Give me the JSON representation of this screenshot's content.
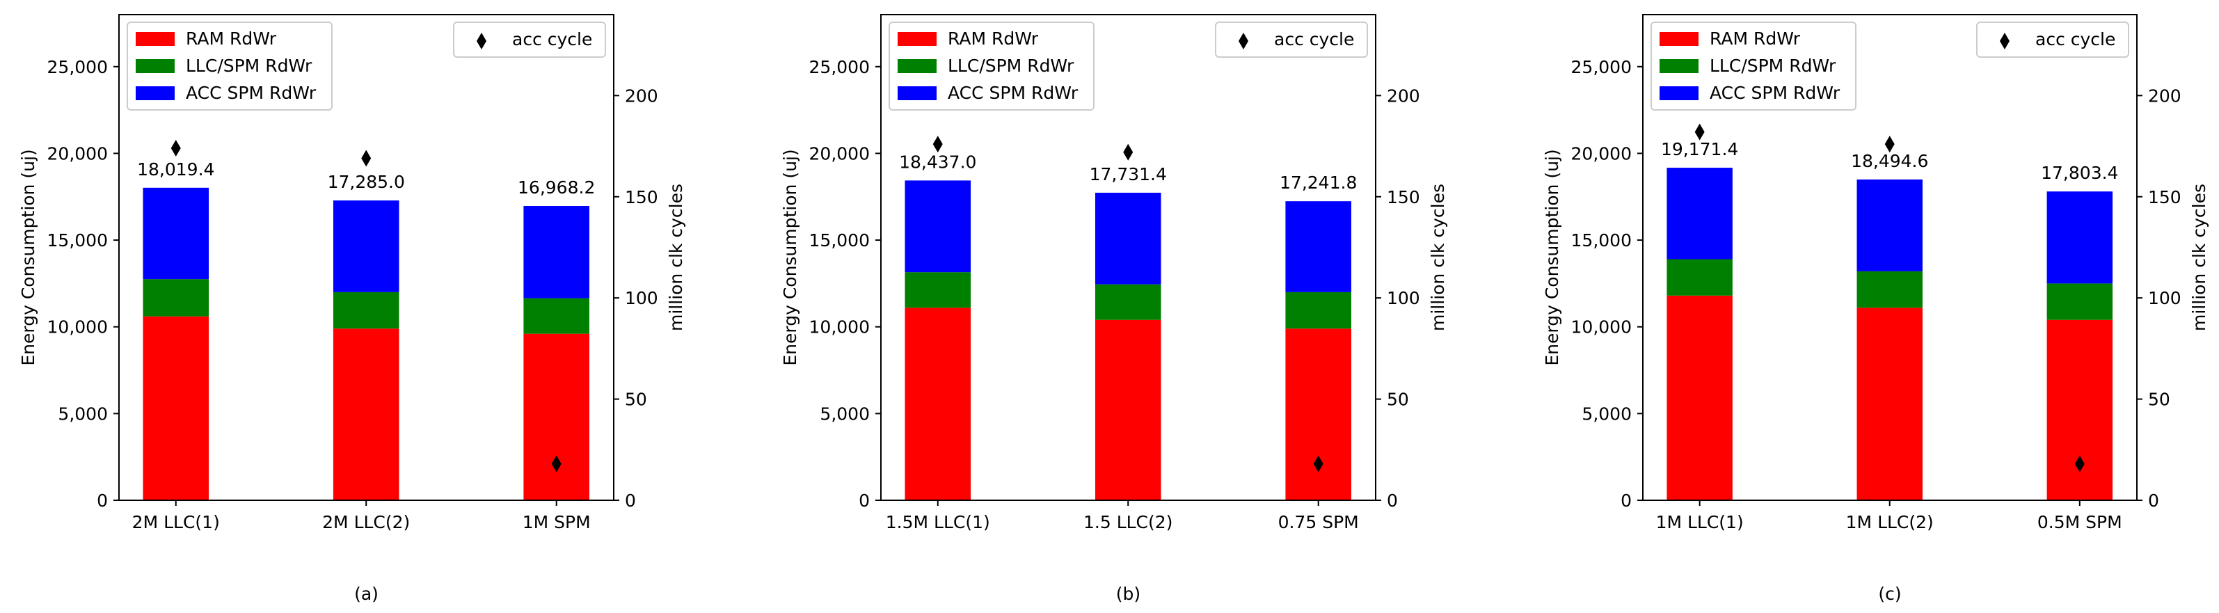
{
  "legend": {
    "ram": "RAM RdWr",
    "llc": "LLC/SPM RdWr",
    "acc": "ACC SPM RdWr",
    "cycle": "acc cycle"
  },
  "colors": {
    "ram": "#ff0000",
    "llc": "#008000",
    "acc": "#0000ff",
    "marker": "#000000"
  },
  "chart_data": [
    {
      "type": "bar",
      "stacked": true,
      "caption": "(a)",
      "categories": [
        "2M LLC(1)",
        "2M LLC(2)",
        "1M SPM"
      ],
      "series": [
        {
          "name": "RAM RdWr",
          "values": [
            10600,
            9900,
            9600
          ]
        },
        {
          "name": "LLC/SPM RdWr",
          "values": [
            2150,
            2100,
            2050
          ]
        },
        {
          "name": "ACC SPM RdWr",
          "values": [
            5269.4,
            5285.0,
            5318.2
          ]
        }
      ],
      "totals": [
        18019.4,
        17285.0,
        16968.2
      ],
      "total_labels": [
        "18,019.4",
        "17,285.0",
        "16,968.2"
      ],
      "secondary_series": {
        "name": "acc cycle",
        "type": "scatter",
        "values": [
          174,
          169,
          18
        ]
      },
      "ylabel": "Energy Consumption (uj)",
      "y2label": "million clk cycles",
      "ylim": [
        0,
        28000
      ],
      "y2lim": [
        0,
        240
      ],
      "yticks": [
        0,
        5000,
        10000,
        15000,
        20000,
        25000
      ],
      "ytick_labels": [
        "0",
        "5,000",
        "10,000",
        "15,000",
        "20,000",
        "25,000"
      ],
      "y2ticks": [
        0,
        50,
        100,
        150,
        200
      ],
      "y2tick_labels": [
        "0",
        "50",
        "100",
        "150",
        "200"
      ],
      "legend_position": "upper-left",
      "legend2_position": "upper-right"
    },
    {
      "type": "bar",
      "stacked": true,
      "caption": "(b)",
      "categories": [
        "1.5M LLC(1)",
        "1.5 LLC(2)",
        "0.75 SPM"
      ],
      "series": [
        {
          "name": "RAM RdWr",
          "values": [
            11100,
            10400,
            9900
          ]
        },
        {
          "name": "LLC/SPM RdWr",
          "values": [
            2050,
            2050,
            2100
          ]
        },
        {
          "name": "ACC SPM RdWr",
          "values": [
            5287.0,
            5281.4,
            5241.8
          ]
        }
      ],
      "totals": [
        18437.0,
        17731.4,
        17241.8
      ],
      "total_labels": [
        "18,437.0",
        "17,731.4",
        "17,241.8"
      ],
      "secondary_series": {
        "name": "acc cycle",
        "type": "scatter",
        "values": [
          176,
          172,
          18
        ]
      },
      "ylabel": "Energy Consumption (uj)",
      "y2label": "million clk cycles",
      "ylim": [
        0,
        28000
      ],
      "y2lim": [
        0,
        240
      ],
      "yticks": [
        0,
        5000,
        10000,
        15000,
        20000,
        25000
      ],
      "ytick_labels": [
        "0",
        "5,000",
        "10,000",
        "15,000",
        "20,000",
        "25,000"
      ],
      "y2ticks": [
        0,
        50,
        100,
        150,
        200
      ],
      "y2tick_labels": [
        "0",
        "50",
        "100",
        "150",
        "200"
      ],
      "legend_position": "upper-left",
      "legend2_position": "upper-right"
    },
    {
      "type": "bar",
      "stacked": true,
      "caption": "(c)",
      "categories": [
        "1M LLC(1)",
        "1M LLC(2)",
        "0.5M SPM"
      ],
      "series": [
        {
          "name": "RAM RdWr",
          "values": [
            11800,
            11100,
            10400
          ]
        },
        {
          "name": "LLC/SPM RdWr",
          "values": [
            2100,
            2100,
            2100
          ]
        },
        {
          "name": "ACC SPM RdWr",
          "values": [
            5271.4,
            5294.6,
            5303.4
          ]
        }
      ],
      "totals": [
        19171.4,
        18494.6,
        17803.4
      ],
      "total_labels": [
        "19,171.4",
        "18,494.6",
        "17,803.4"
      ],
      "secondary_series": {
        "name": "acc cycle",
        "type": "scatter",
        "values": [
          182,
          176,
          18
        ]
      },
      "ylabel": "Energy Consumption (uj)",
      "y2label": "million clk cycles",
      "ylim": [
        0,
        28000
      ],
      "y2lim": [
        0,
        240
      ],
      "yticks": [
        0,
        5000,
        10000,
        15000,
        20000,
        25000
      ],
      "ytick_labels": [
        "0",
        "5,000",
        "10,000",
        "15,000",
        "20,000",
        "25,000"
      ],
      "y2ticks": [
        0,
        50,
        100,
        150,
        200
      ],
      "y2tick_labels": [
        "0",
        "50",
        "100",
        "150",
        "200"
      ],
      "legend_position": "upper-left",
      "legend2_position": "upper-right"
    }
  ]
}
